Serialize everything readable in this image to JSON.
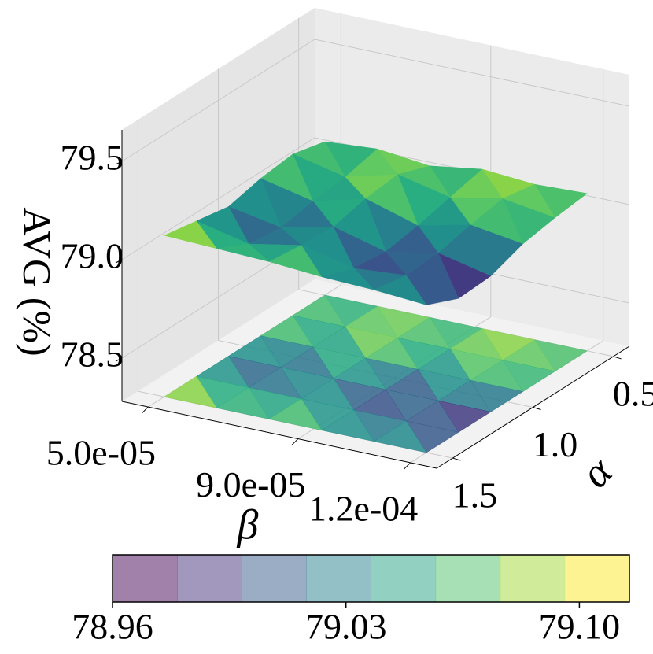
{
  "chart_data": {
    "type": "surface",
    "xlabel": "β",
    "ylabel": "α",
    "zlabel": "AVG (%)",
    "x": [
      5e-05,
      6.4e-05,
      7.8e-05,
      9.2e-05,
      0.000106,
      0.00012
    ],
    "y": [
      0.5,
      0.7,
      0.9,
      1.1,
      1.3,
      1.5
    ],
    "z": [
      [
        79.06,
        79.08,
        79.05,
        79.09,
        79.07,
        79.08
      ],
      [
        79.1,
        79.04,
        79.11,
        79.05,
        79.1,
        79.06
      ],
      [
        79.08,
        79.02,
        79.09,
        79.01,
        79.07,
        79.03
      ],
      [
        79.04,
        78.99,
        79.05,
        78.98,
        79.03,
        78.97
      ],
      [
        79.07,
        79.01,
        79.06,
        79.0,
        79.02,
        78.96
      ],
      [
        79.1,
        79.09,
        79.08,
        79.06,
        79.05,
        79.03
      ]
    ],
    "xlim": [
      4.3e-05,
      0.000127
    ],
    "ylim": [
      0.4,
      1.6
    ],
    "zlim": [
      78.28,
      79.66
    ],
    "xticks": [
      {
        "value": 5e-05,
        "label": "5.0e-05"
      },
      {
        "value": 9e-05,
        "label": "9.0e-05"
      },
      {
        "value": 0.00012,
        "label": "1.2e-04"
      }
    ],
    "yticks": [
      0.5,
      {
        "value": 1,
        "label": "1.0"
      },
      1.5
    ],
    "zticks": [
      78.5,
      {
        "value": 79,
        "label": "79.0"
      },
      79.5
    ],
    "colormap": "viridis",
    "clim": [
      78.96,
      79.115
    ],
    "colorbar": {
      "levels": 8,
      "alpha": 0.5,
      "ticks": [
        78.96,
        79.03,
        {
          "value": 79.1,
          "label": "79.10"
        }
      ]
    },
    "grid": true
  }
}
